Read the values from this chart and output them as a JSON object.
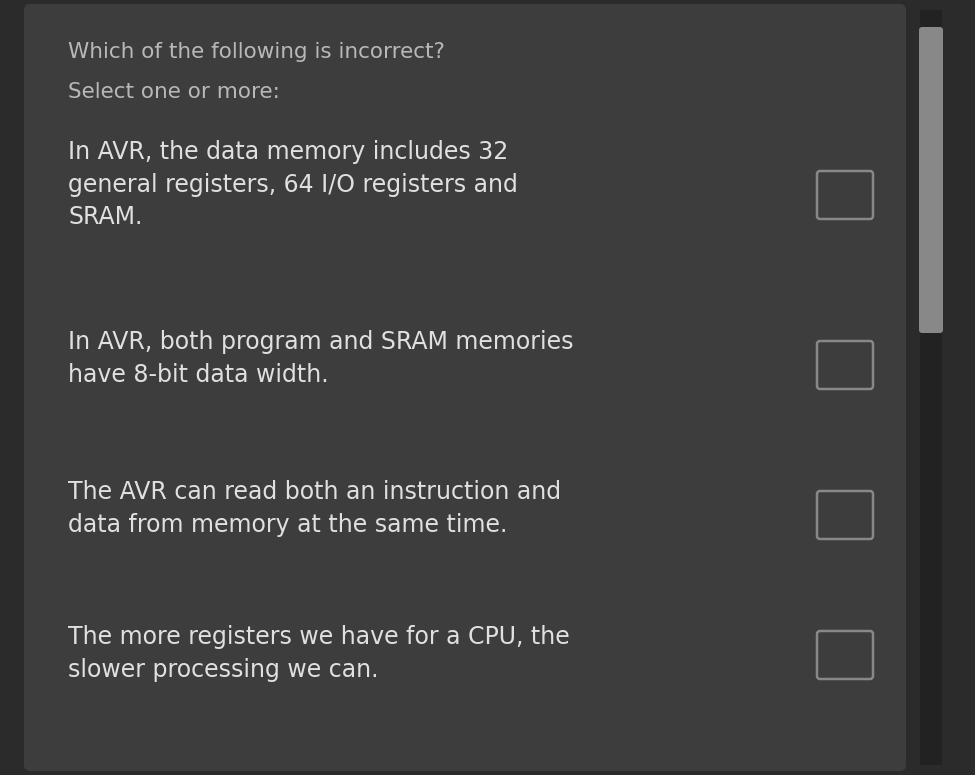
{
  "background_color": "#3d3d3d",
  "outer_bg_color": "#2b2b2b",
  "text_color": "#e0e0e0",
  "subtitle_color": "#b8b8b8",
  "checkbox_edge_color": "#888888",
  "checkbox_fill": "#3d3d3d",
  "scrollbar_bg": "#222222",
  "scrollbar_handle": "#888888",
  "title": "Which of the following is incorrect?",
  "subtitle": "Select one or more:",
  "options": [
    "In AVR, the data memory includes 32\ngeneral registers, 64 I/O registers and\nSRAM.",
    "In AVR, both program and SRAM memories\nhave 8-bit data width.",
    "The AVR can read both an instruction and\ndata from memory at the same time.",
    "The more registers we have for a CPU, the\nslower processing we can."
  ],
  "figsize": [
    9.75,
    7.75
  ],
  "dpi": 100
}
